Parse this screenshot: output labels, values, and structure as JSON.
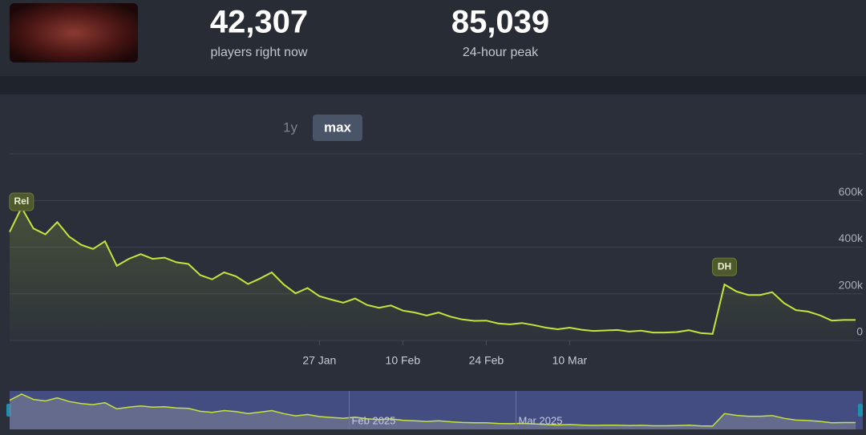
{
  "header": {
    "stats": [
      {
        "value": "42,307",
        "label": "players right now"
      },
      {
        "value": "85,039",
        "label": "24-hour peak"
      }
    ]
  },
  "range_buttons": {
    "items": [
      "1y",
      "max"
    ],
    "active": "max"
  },
  "chart_data": {
    "type": "line",
    "x": [
      "2024-12-06",
      "2024-12-08",
      "2024-12-10",
      "2024-12-12",
      "2024-12-14",
      "2024-12-16",
      "2024-12-18",
      "2024-12-20",
      "2024-12-22",
      "2024-12-24",
      "2024-12-26",
      "2024-12-28",
      "2024-12-30",
      "2025-01-01",
      "2025-01-03",
      "2025-01-05",
      "2025-01-07",
      "2025-01-09",
      "2025-01-11",
      "2025-01-13",
      "2025-01-15",
      "2025-01-17",
      "2025-01-19",
      "2025-01-21",
      "2025-01-23",
      "2025-01-25",
      "2025-01-27",
      "2025-01-29",
      "2025-01-31",
      "2025-02-02",
      "2025-02-04",
      "2025-02-06",
      "2025-02-08",
      "2025-02-10",
      "2025-02-12",
      "2025-02-14",
      "2025-02-16",
      "2025-02-18",
      "2025-02-20",
      "2025-02-22",
      "2025-02-24",
      "2025-02-26",
      "2025-02-28",
      "2025-03-02",
      "2025-03-04",
      "2025-03-06",
      "2025-03-08",
      "2025-03-10",
      "2025-03-12",
      "2025-03-14",
      "2025-03-16",
      "2025-03-18",
      "2025-03-20",
      "2025-03-22",
      "2025-03-24",
      "2025-03-26",
      "2025-03-28",
      "2025-03-30",
      "2025-04-01",
      "2025-04-03",
      "2025-04-05",
      "2025-04-07",
      "2025-04-09",
      "2025-04-11",
      "2025-04-13",
      "2025-04-15",
      "2025-04-17",
      "2025-04-19",
      "2025-04-21",
      "2025-04-23",
      "2025-04-25",
      "2025-04-27"
    ],
    "series": [
      {
        "color": "#c5e43c",
        "values": [
          465000,
          570000,
          480000,
          455000,
          507000,
          445000,
          410000,
          392000,
          425000,
          320000,
          350000,
          370000,
          350000,
          355000,
          335000,
          328000,
          280000,
          262000,
          292000,
          275000,
          242000,
          265000,
          292000,
          240000,
          202000,
          225000,
          190000,
          175000,
          162000,
          180000,
          152000,
          140000,
          150000,
          128000,
          120000,
          107000,
          120000,
          102000,
          90000,
          84000,
          85000,
          73000,
          69000,
          75000,
          66000,
          55000,
          48000,
          55000,
          46000,
          41000,
          43000,
          45000,
          38000,
          42000,
          34000,
          34000,
          36000,
          44000,
          32000,
          28000,
          240000,
          210000,
          195000,
          195000,
          207000,
          160000,
          130000,
          124000,
          108000,
          85000,
          88000,
          88000
        ]
      }
    ],
    "xlim": [
      "2024-12-06",
      "2025-04-27"
    ],
    "xticks": [
      {
        "value": "2025-01-27",
        "label": "27 Jan"
      },
      {
        "value": "2025-02-10",
        "label": "10 Feb"
      },
      {
        "value": "2025-02-24",
        "label": "24 Feb"
      },
      {
        "value": "2025-03-10",
        "label": "10 Mar"
      }
    ],
    "ylim": [
      0,
      800000
    ],
    "yticks": [
      0,
      {
        "value": 200000,
        "label": "200k"
      },
      {
        "value": 400000,
        "label": "400k"
      },
      {
        "value": 600000,
        "label": "600k"
      }
    ],
    "grid": true,
    "annotations": [
      {
        "label": "Rel",
        "x": "2024-12-08"
      },
      {
        "label": "DH",
        "x": "2025-04-05"
      }
    ],
    "navigator": {
      "ticks": [
        {
          "value": "2025-02-01",
          "label": "Feb 2025"
        },
        {
          "value": "2025-03-01",
          "label": "Mar 2025"
        }
      ]
    }
  }
}
